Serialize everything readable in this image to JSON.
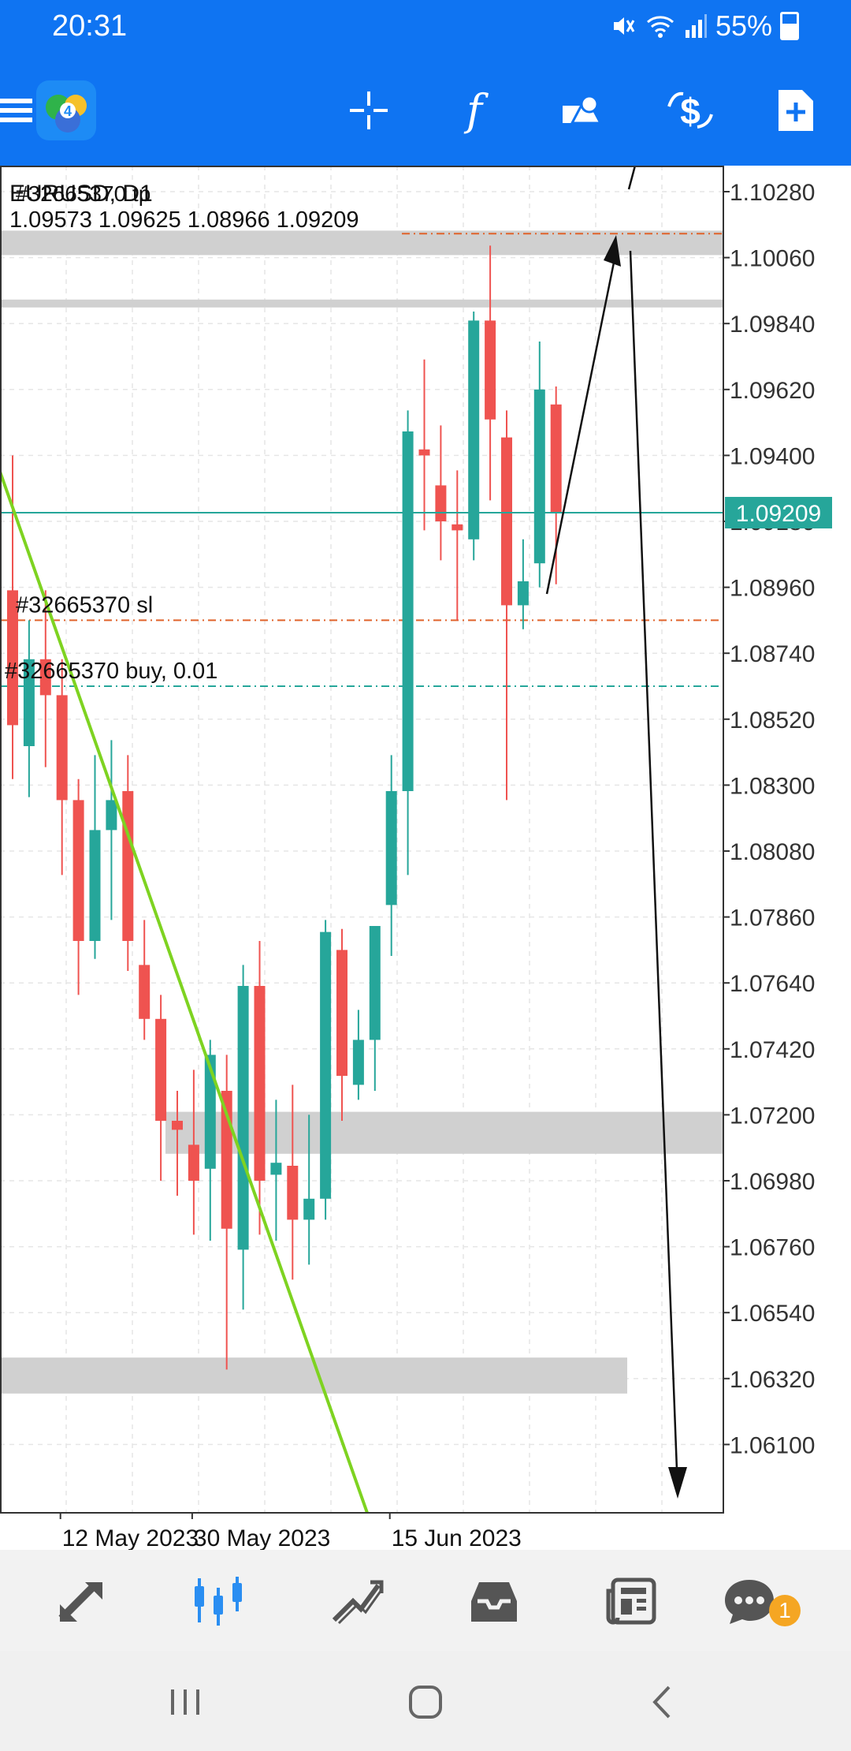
{
  "status_bar": {
    "time": "20:31",
    "battery": "55%"
  },
  "toolbar": {
    "icons": [
      "menu-icon",
      "metatrader-logo",
      "crosshair-icon",
      "indicators-icon",
      "objects-icon",
      "trade-icon",
      "new-order-icon"
    ]
  },
  "chart": {
    "symbol_timeframe": "EURUSD, D1",
    "ohlc": "1.09573 1.09625 1.08966 1.09209",
    "tp_label": "#32665370 tp",
    "sl_label": "#32665370 sl",
    "buy_label": "#32665370 buy, 0.01",
    "current_price": "1.09209",
    "current_price_color": "#26a69a",
    "bull_color": "#26a69a",
    "bear_color": "#ef5350",
    "price_ticks": [
      "1.10280",
      "1.10060",
      "1.09840",
      "1.09620",
      "1.09400",
      "1.09180",
      "1.08960",
      "1.08740",
      "1.08520",
      "1.08300",
      "1.08080",
      "1.07860",
      "1.07640",
      "1.07420",
      "1.07200",
      "1.06980",
      "1.06760",
      "1.06540",
      "1.06320",
      "1.06100"
    ],
    "date_ticks": [
      "12 May 2023",
      "30 May 2023",
      "15 Jun 2023"
    ]
  },
  "chart_data": {
    "type": "candlestick",
    "symbol": "EURUSD",
    "timeframe": "D1",
    "ylim": [
      1.0588,
      1.105
    ],
    "last_price": 1.09209,
    "levels": {
      "tp": 1.1014,
      "sl": 1.0885,
      "entry": 1.0863
    },
    "x_labels": [
      {
        "label": "12 May 2023",
        "candle": 3
      },
      {
        "label": "30 May 2023",
        "candle": 11
      },
      {
        "label": "15 Jun 2023",
        "candle": 23
      }
    ],
    "candles": [
      {
        "o": 1.0895,
        "h": 1.094,
        "l": 1.0832,
        "c": 1.085
      },
      {
        "o": 1.0843,
        "h": 1.0885,
        "l": 1.0826,
        "c": 1.0872
      },
      {
        "o": 1.0872,
        "h": 1.0895,
        "l": 1.0836,
        "c": 1.086
      },
      {
        "o": 1.086,
        "h": 1.0872,
        "l": 1.08,
        "c": 1.0825
      },
      {
        "o": 1.0825,
        "h": 1.0832,
        "l": 1.076,
        "c": 1.0778
      },
      {
        "o": 1.0778,
        "h": 1.084,
        "l": 1.0772,
        "c": 1.0815
      },
      {
        "o": 1.0815,
        "h": 1.0845,
        "l": 1.0785,
        "c": 1.0825
      },
      {
        "o": 1.0828,
        "h": 1.084,
        "l": 1.0768,
        "c": 1.0778
      },
      {
        "o": 1.077,
        "h": 1.0785,
        "l": 1.0745,
        "c": 1.0752
      },
      {
        "o": 1.0752,
        "h": 1.076,
        "l": 1.0698,
        "c": 1.0718
      },
      {
        "o": 1.0718,
        "h": 1.0728,
        "l": 1.0693,
        "c": 1.0715
      },
      {
        "o": 1.071,
        "h": 1.0735,
        "l": 1.068,
        "c": 1.0698
      },
      {
        "o": 1.0702,
        "h": 1.0745,
        "l": 1.0678,
        "c": 1.074
      },
      {
        "o": 1.0728,
        "h": 1.074,
        "l": 1.0635,
        "c": 1.0682
      },
      {
        "o": 1.0675,
        "h": 1.077,
        "l": 1.0655,
        "c": 1.0763
      },
      {
        "o": 1.0763,
        "h": 1.0778,
        "l": 1.068,
        "c": 1.0698
      },
      {
        "o": 1.07,
        "h": 1.0725,
        "l": 1.0678,
        "c": 1.0704
      },
      {
        "o": 1.0703,
        "h": 1.073,
        "l": 1.0665,
        "c": 1.0685
      },
      {
        "o": 1.0685,
        "h": 1.072,
        "l": 1.067,
        "c": 1.0692
      },
      {
        "o": 1.0692,
        "h": 1.0785,
        "l": 1.0685,
        "c": 1.0781
      },
      {
        "o": 1.0775,
        "h": 1.0782,
        "l": 1.0718,
        "c": 1.0733
      },
      {
        "o": 1.073,
        "h": 1.0755,
        "l": 1.0725,
        "c": 1.0745
      },
      {
        "o": 1.0745,
        "h": 1.078,
        "l": 1.0728,
        "c": 1.0783
      },
      {
        "o": 1.079,
        "h": 1.084,
        "l": 1.0773,
        "c": 1.0828
      },
      {
        "o": 1.0828,
        "h": 1.0955,
        "l": 1.08,
        "c": 1.0948
      },
      {
        "o": 1.0942,
        "h": 1.0972,
        "l": 1.0915,
        "c": 1.094
      },
      {
        "o": 1.093,
        "h": 1.095,
        "l": 1.0905,
        "c": 1.0918
      },
      {
        "o": 1.0917,
        "h": 1.0935,
        "l": 1.0885,
        "c": 1.0915
      },
      {
        "o": 1.0912,
        "h": 1.0988,
        "l": 1.0905,
        "c": 1.0985
      },
      {
        "o": 1.0985,
        "h": 1.101,
        "l": 1.0925,
        "c": 1.0952
      },
      {
        "o": 1.0946,
        "h": 1.0955,
        "l": 1.0825,
        "c": 1.089
      },
      {
        "o": 1.089,
        "h": 1.0912,
        "l": 1.0882,
        "c": 1.0898
      },
      {
        "o": 1.0904,
        "h": 1.0978,
        "l": 1.0896,
        "c": 1.0962
      },
      {
        "o": 1.0957,
        "h": 1.0963,
        "l": 1.0897,
        "c": 1.0921
      }
    ]
  },
  "bottom_nav": {
    "items": [
      "quotes-icon",
      "chart-icon",
      "trade-icon",
      "history-icon",
      "news-icon",
      "messages-icon"
    ],
    "badge": "1",
    "active": "chart-icon"
  }
}
